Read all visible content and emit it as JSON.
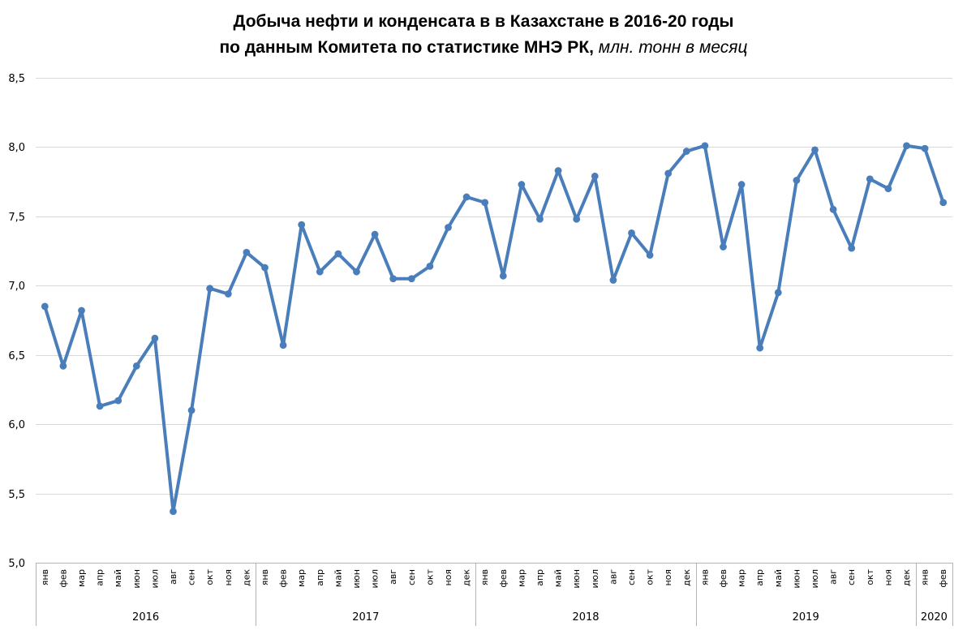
{
  "title": {
    "line1": "Добыча нефти и конденсата в в Казахстане в 2016-20 годы",
    "line2_main": "по данным Комитета по статистике МНЭ РК,",
    "line2_units": " млн. тонн в месяц"
  },
  "chart_data": {
    "type": "line",
    "title": "Добыча нефти и конденсата в в Казахстане в 2016-20 годы",
    "subtitle": "по данным Комитета по статистике МНЭ РК, млн. тонн в месяц",
    "ylabel": "млн. тонн в месяц",
    "xlabel": "",
    "legend_position": "none",
    "grid": true,
    "ylim": [
      5.0,
      8.5
    ],
    "ytick_step": 0.5,
    "ytick_labels": [
      "5,0",
      "5,5",
      "6,0",
      "6,5",
      "7,0",
      "7,5",
      "8,0",
      "8,5"
    ],
    "categories": [
      {
        "year": "2016",
        "months": [
          "янв",
          "фев",
          "мар",
          "апр",
          "май",
          "июн",
          "июл",
          "авг",
          "сен",
          "окт",
          "ноя",
          "дек"
        ]
      },
      {
        "year": "2017",
        "months": [
          "янв",
          "фев",
          "мар",
          "апр",
          "май",
          "июн",
          "июл",
          "авг",
          "сен",
          "окт",
          "ноя",
          "дек"
        ]
      },
      {
        "year": "2018",
        "months": [
          "янв",
          "фев",
          "мар",
          "апр",
          "май",
          "июн",
          "июл",
          "авг",
          "сен",
          "окт",
          "ноя",
          "дек"
        ]
      },
      {
        "year": "2019",
        "months": [
          "янв",
          "фев",
          "мар",
          "апр",
          "май",
          "июн",
          "июл",
          "авг",
          "сен",
          "окт",
          "ноя",
          "дек"
        ]
      },
      {
        "year": "2020",
        "months": [
          "янв",
          "фев"
        ]
      }
    ],
    "series": [
      {
        "name": "Добыча нефти и конденсата, млн. тонн в месяц",
        "color": "#4A7EBB",
        "marker": "circle",
        "values": [
          6.85,
          6.42,
          6.82,
          6.13,
          6.17,
          6.42,
          6.62,
          5.37,
          6.1,
          6.98,
          6.94,
          7.24,
          7.13,
          6.57,
          7.44,
          7.1,
          7.23,
          7.1,
          7.37,
          7.05,
          7.05,
          7.14,
          7.42,
          7.64,
          7.6,
          7.07,
          7.73,
          7.48,
          7.83,
          7.48,
          7.79,
          7.04,
          7.38,
          7.22,
          7.81,
          7.97,
          8.01,
          7.28,
          7.73,
          6.55,
          6.95,
          7.76,
          7.98,
          7.55,
          7.27,
          7.77,
          7.7,
          8.01,
          7.99,
          7.6
        ]
      }
    ],
    "colors": {
      "line": "#4A7EBB",
      "gridline": "#D9D9D9",
      "axis": "#B3B3B3",
      "text": "#000000",
      "background": "#FFFFFF"
    }
  }
}
